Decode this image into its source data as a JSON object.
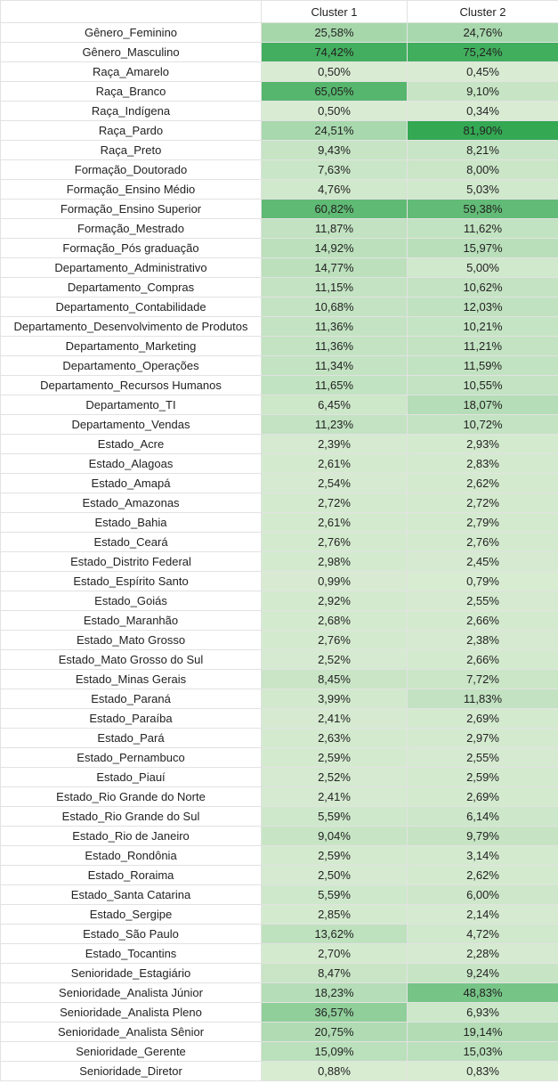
{
  "header": {
    "corner": "",
    "col1": "Cluster 1",
    "col2": "Cluster 2"
  },
  "colors": {
    "low": "#d9ecd3",
    "high": "#34a853"
  },
  "rows": [
    {
      "label": "Gênero_Feminino",
      "c1": "25,58%",
      "c2": "24,76%",
      "v1": 25.58,
      "v2": 24.76
    },
    {
      "label": "Gênero_Masculino",
      "c1": "74,42%",
      "c2": "75,24%",
      "v1": 74.42,
      "v2": 75.24
    },
    {
      "label": "Raça_Amarelo",
      "c1": "0,50%",
      "c2": "0,45%",
      "v1": 0.5,
      "v2": 0.45
    },
    {
      "label": "Raça_Branco",
      "c1": "65,05%",
      "c2": "9,10%",
      "v1": 65.05,
      "v2": 9.1
    },
    {
      "label": "Raça_Indígena",
      "c1": "0,50%",
      "c2": "0,34%",
      "v1": 0.5,
      "v2": 0.34
    },
    {
      "label": "Raça_Pardo",
      "c1": "24,51%",
      "c2": "81,90%",
      "v1": 24.51,
      "v2": 81.9
    },
    {
      "label": "Raça_Preto",
      "c1": "9,43%",
      "c2": "8,21%",
      "v1": 9.43,
      "v2": 8.21
    },
    {
      "label": "Formação_Doutorado",
      "c1": "7,63%",
      "c2": "8,00%",
      "v1": 7.63,
      "v2": 8.0
    },
    {
      "label": "Formação_Ensino Médio",
      "c1": "4,76%",
      "c2": "5,03%",
      "v1": 4.76,
      "v2": 5.03
    },
    {
      "label": "Formação_Ensino Superior",
      "c1": "60,82%",
      "c2": "59,38%",
      "v1": 60.82,
      "v2": 59.38
    },
    {
      "label": "Formação_Mestrado",
      "c1": "11,87%",
      "c2": "11,62%",
      "v1": 11.87,
      "v2": 11.62
    },
    {
      "label": "Formação_Pós graduação",
      "c1": "14,92%",
      "c2": "15,97%",
      "v1": 14.92,
      "v2": 15.97
    },
    {
      "label": "Departamento_Administrativo",
      "c1": "14,77%",
      "c2": "5,00%",
      "v1": 14.77,
      "v2": 5.0
    },
    {
      "label": "Departamento_Compras",
      "c1": "11,15%",
      "c2": "10,62%",
      "v1": 11.15,
      "v2": 10.62
    },
    {
      "label": "Departamento_Contabilidade",
      "c1": "10,68%",
      "c2": "12,03%",
      "v1": 10.68,
      "v2": 12.03
    },
    {
      "label": "Departamento_Desenvolvimento de Produtos",
      "c1": "11,36%",
      "c2": "10,21%",
      "v1": 11.36,
      "v2": 10.21
    },
    {
      "label": "Departamento_Marketing",
      "c1": "11,36%",
      "c2": "11,21%",
      "v1": 11.36,
      "v2": 11.21
    },
    {
      "label": "Departamento_Operações",
      "c1": "11,34%",
      "c2": "11,59%",
      "v1": 11.34,
      "v2": 11.59
    },
    {
      "label": "Departamento_Recursos Humanos",
      "c1": "11,65%",
      "c2": "10,55%",
      "v1": 11.65,
      "v2": 10.55
    },
    {
      "label": "Departamento_TI",
      "c1": "6,45%",
      "c2": "18,07%",
      "v1": 6.45,
      "v2": 18.07
    },
    {
      "label": "Departamento_Vendas",
      "c1": "11,23%",
      "c2": "10,72%",
      "v1": 11.23,
      "v2": 10.72
    },
    {
      "label": "Estado_Acre",
      "c1": "2,39%",
      "c2": "2,93%",
      "v1": 2.39,
      "v2": 2.93
    },
    {
      "label": "Estado_Alagoas",
      "c1": "2,61%",
      "c2": "2,83%",
      "v1": 2.61,
      "v2": 2.83
    },
    {
      "label": "Estado_Amapá",
      "c1": "2,54%",
      "c2": "2,62%",
      "v1": 2.54,
      "v2": 2.62
    },
    {
      "label": "Estado_Amazonas",
      "c1": "2,72%",
      "c2": "2,72%",
      "v1": 2.72,
      "v2": 2.72
    },
    {
      "label": "Estado_Bahia",
      "c1": "2,61%",
      "c2": "2,79%",
      "v1": 2.61,
      "v2": 2.79
    },
    {
      "label": "Estado_Ceará",
      "c1": "2,76%",
      "c2": "2,76%",
      "v1": 2.76,
      "v2": 2.76
    },
    {
      "label": "Estado_Distrito Federal",
      "c1": "2,98%",
      "c2": "2,45%",
      "v1": 2.98,
      "v2": 2.45
    },
    {
      "label": "Estado_Espírito Santo",
      "c1": "0,99%",
      "c2": "0,79%",
      "v1": 0.99,
      "v2": 0.79
    },
    {
      "label": "Estado_Goiás",
      "c1": "2,92%",
      "c2": "2,55%",
      "v1": 2.92,
      "v2": 2.55
    },
    {
      "label": "Estado_Maranhão",
      "c1": "2,68%",
      "c2": "2,66%",
      "v1": 2.68,
      "v2": 2.66
    },
    {
      "label": "Estado_Mato Grosso",
      "c1": "2,76%",
      "c2": "2,38%",
      "v1": 2.76,
      "v2": 2.38
    },
    {
      "label": "Estado_Mato Grosso do Sul",
      "c1": "2,52%",
      "c2": "2,66%",
      "v1": 2.52,
      "v2": 2.66
    },
    {
      "label": "Estado_Minas Gerais",
      "c1": "8,45%",
      "c2": "7,72%",
      "v1": 8.45,
      "v2": 7.72
    },
    {
      "label": "Estado_Paraná",
      "c1": "3,99%",
      "c2": "11,83%",
      "v1": 3.99,
      "v2": 11.83
    },
    {
      "label": "Estado_Paraíba",
      "c1": "2,41%",
      "c2": "2,69%",
      "v1": 2.41,
      "v2": 2.69
    },
    {
      "label": "Estado_Pará",
      "c1": "2,63%",
      "c2": "2,97%",
      "v1": 2.63,
      "v2": 2.97
    },
    {
      "label": "Estado_Pernambuco",
      "c1": "2,59%",
      "c2": "2,55%",
      "v1": 2.59,
      "v2": 2.55
    },
    {
      "label": "Estado_Piauí",
      "c1": "2,52%",
      "c2": "2,59%",
      "v1": 2.52,
      "v2": 2.59
    },
    {
      "label": "Estado_Rio Grande do Norte",
      "c1": "2,41%",
      "c2": "2,69%",
      "v1": 2.41,
      "v2": 2.69
    },
    {
      "label": "Estado_Rio Grande do Sul",
      "c1": "5,59%",
      "c2": "6,14%",
      "v1": 5.59,
      "v2": 6.14
    },
    {
      "label": "Estado_Rio de Janeiro",
      "c1": "9,04%",
      "c2": "9,79%",
      "v1": 9.04,
      "v2": 9.79
    },
    {
      "label": "Estado_Rondônia",
      "c1": "2,59%",
      "c2": "3,14%",
      "v1": 2.59,
      "v2": 3.14
    },
    {
      "label": "Estado_Roraima",
      "c1": "2,50%",
      "c2": "2,62%",
      "v1": 2.5,
      "v2": 2.62
    },
    {
      "label": "Estado_Santa Catarina",
      "c1": "5,59%",
      "c2": "6,00%",
      "v1": 5.59,
      "v2": 6.0
    },
    {
      "label": "Estado_Sergipe",
      "c1": "2,85%",
      "c2": "2,14%",
      "v1": 2.85,
      "v2": 2.14
    },
    {
      "label": "Estado_São Paulo",
      "c1": "13,62%",
      "c2": "4,72%",
      "v1": 13.62,
      "v2": 4.72
    },
    {
      "label": "Estado_Tocantins",
      "c1": "2,70%",
      "c2": "2,28%",
      "v1": 2.7,
      "v2": 2.28
    },
    {
      "label": "Senioridade_Estagiário",
      "c1": "8,47%",
      "c2": "9,24%",
      "v1": 8.47,
      "v2": 9.24
    },
    {
      "label": "Senioridade_Analista Júnior",
      "c1": "18,23%",
      "c2": "48,83%",
      "v1": 18.23,
      "v2": 48.83
    },
    {
      "label": "Senioridade_Analista Pleno",
      "c1": "36,57%",
      "c2": "6,93%",
      "v1": 36.57,
      "v2": 6.93
    },
    {
      "label": "Senioridade_Analista Sênior",
      "c1": "20,75%",
      "c2": "19,14%",
      "v1": 20.75,
      "v2": 19.14
    },
    {
      "label": "Senioridade_Gerente",
      "c1": "15,09%",
      "c2": "15,03%",
      "v1": 15.09,
      "v2": 15.03
    },
    {
      "label": "Senioridade_Diretor",
      "c1": "0,88%",
      "c2": "0,83%",
      "v1": 0.88,
      "v2": 0.83
    }
  ]
}
